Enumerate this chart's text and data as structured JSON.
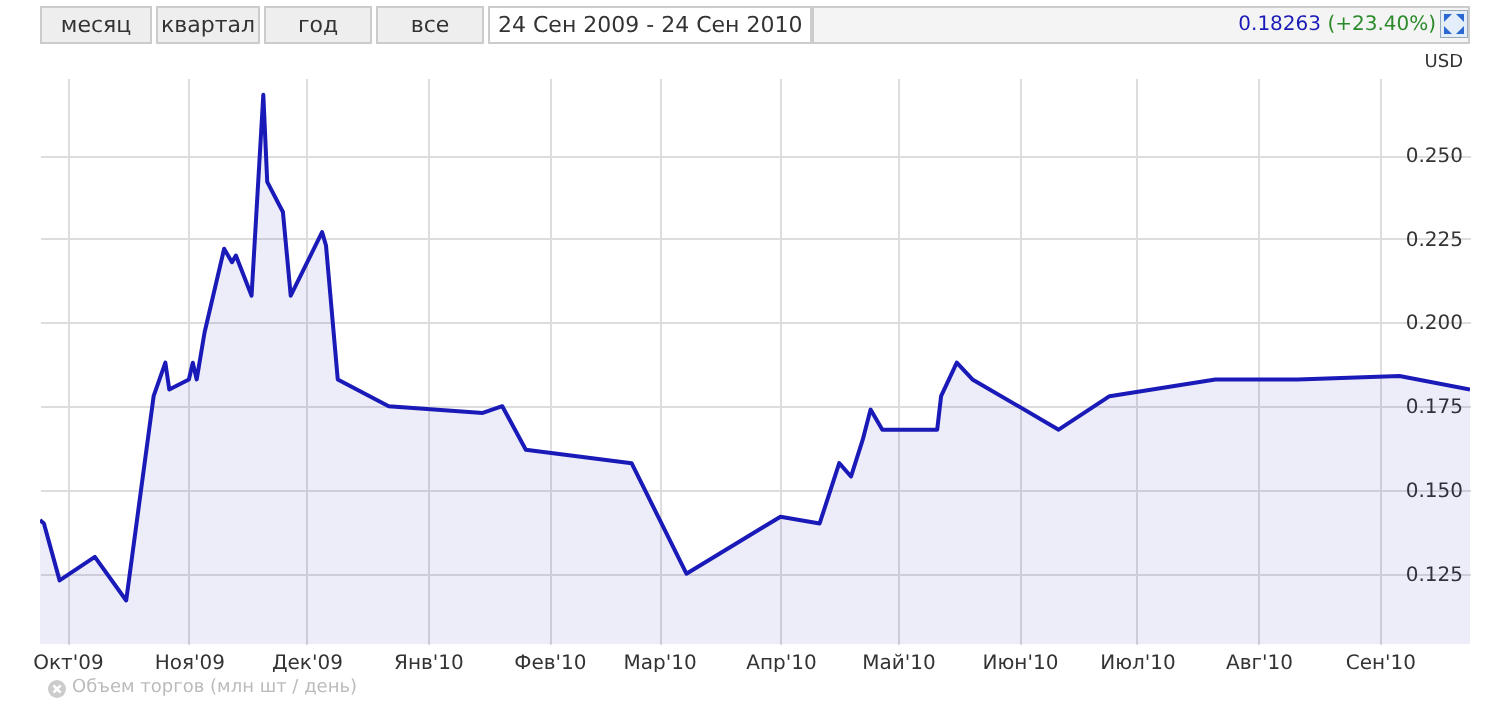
{
  "chart_data": {
    "type": "area",
    "ylabel": "USD",
    "annotations": [
      "месяц",
      "квартал",
      "год",
      "все",
      "24 Сен 2009 - 24 Сен 2010",
      "0.18263 (+23.40%)",
      "Объем торгов (млн шт / день)"
    ],
    "x": [
      "2009-09-24",
      "2009-09-25",
      "2009-09-29",
      "2009-10-08",
      "2009-10-16",
      "2009-10-23",
      "2009-10-26",
      "2009-10-27",
      "2009-11-01",
      "2009-11-02",
      "2009-11-03",
      "2009-11-05",
      "2009-11-10",
      "2009-11-12",
      "2009-11-13",
      "2009-11-17",
      "2009-11-20",
      "2009-11-21",
      "2009-11-25",
      "2009-11-27",
      "2009-12-05",
      "2009-12-06",
      "2009-12-09",
      "2009-12-22",
      "2010-01-15",
      "2010-01-20",
      "2010-01-26",
      "2010-02-22",
      "2010-03-08",
      "2010-04-01",
      "2010-04-11",
      "2010-04-16",
      "2010-04-19",
      "2010-04-22",
      "2010-04-24",
      "2010-04-27",
      "2010-05-11",
      "2010-05-12",
      "2010-05-16",
      "2010-05-20",
      "2010-06-11",
      "2010-06-24",
      "2010-07-21",
      "2010-08-11",
      "2010-09-06",
      "2010-09-24"
    ],
    "series": [
      {
        "color": "#1a1ab8",
        "values": [
          0.141,
          0.14,
          0.123,
          0.13,
          0.117,
          0.178,
          0.188,
          0.18,
          0.183,
          0.188,
          0.183,
          0.197,
          0.222,
          0.218,
          0.22,
          0.208,
          0.268,
          0.242,
          0.233,
          0.208,
          0.227,
          0.223,
          0.183,
          0.175,
          0.173,
          0.175,
          0.162,
          0.158,
          0.125,
          0.142,
          0.14,
          0.158,
          0.154,
          0.165,
          0.174,
          0.168,
          0.168,
          0.178,
          0.188,
          0.183,
          0.168,
          0.178,
          0.183,
          0.183,
          0.184,
          0.18
        ]
      }
    ],
    "xlim": [
      "2009-09-24",
      "2010-09-24"
    ],
    "xticks": [
      {
        "value": "2009-10-01",
        "label": "Окт'09"
      },
      {
        "value": "2009-11-01",
        "label": "Ноя'09"
      },
      {
        "value": "2009-12-01",
        "label": "Дек'09"
      },
      {
        "value": "2010-01-01",
        "label": "Янв'10"
      },
      {
        "value": "2010-02-01",
        "label": "Фев'10"
      },
      {
        "value": "2010-03-01",
        "label": "Мар'10"
      },
      {
        "value": "2010-04-01",
        "label": "Апр'10"
      },
      {
        "value": "2010-05-01",
        "label": "Май'10"
      },
      {
        "value": "2010-06-01",
        "label": "Июн'10"
      },
      {
        "value": "2010-07-01",
        "label": "Июл'10"
      },
      {
        "value": "2010-08-01",
        "label": "Авг'10"
      },
      {
        "value": "2010-09-01",
        "label": "Сен'10"
      }
    ],
    "ylim": [
      0.104,
      0.273
    ],
    "yticks": [
      {
        "value": 0.125,
        "label": "0.125"
      },
      {
        "value": 0.15,
        "label": "0.150"
      },
      {
        "value": 0.175,
        "label": "0.175"
      },
      {
        "value": 0.2,
        "label": "0.200"
      },
      {
        "value": 0.225,
        "label": "0.225"
      },
      {
        "value": 0.25,
        "label": "0.250"
      }
    ],
    "grid": true
  }
}
